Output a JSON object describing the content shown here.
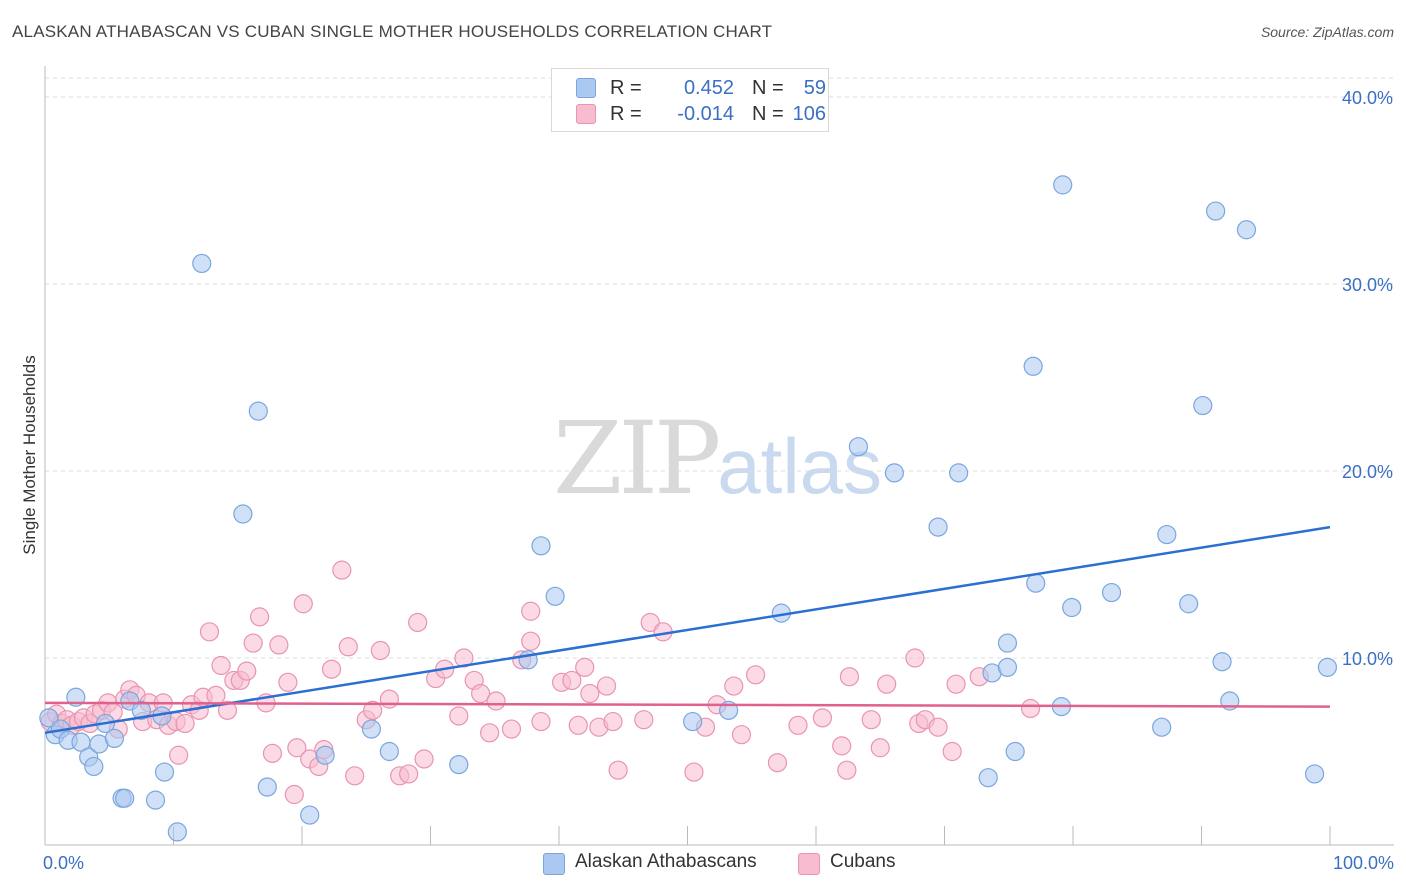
{
  "title": "ALASKAN ATHABASCAN VS CUBAN SINGLE MOTHER HOUSEHOLDS CORRELATION CHART",
  "source": "Source: ZipAtlas.com",
  "watermark": {
    "zip": "ZIP",
    "atlas": "atlas"
  },
  "legend_top": [
    {
      "r_label": "R =",
      "r_value": "0.452",
      "n_label": "N =",
      "n_value": "59",
      "color": "#aac8f0"
    },
    {
      "r_label": "R =",
      "r_value": "-0.014",
      "n_label": "N =",
      "n_value": "106",
      "color": "#f7bcd0"
    }
  ],
  "legend_bottom": [
    {
      "label": "Alaskan Athabascans",
      "color": "#aac8f0"
    },
    {
      "label": "Cubans",
      "color": "#f7bcd0"
    }
  ],
  "chart_data": {
    "type": "scatter",
    "title": "ALASKAN ATHABASCAN VS CUBAN SINGLE MOTHER HOUSEHOLDS CORRELATION CHART",
    "xlabel": "",
    "ylabel": "Single Mother Households",
    "xlim": [
      0,
      100
    ],
    "ylim": [
      0,
      40
    ],
    "x_tick_labels": [
      "0.0%",
      "100.0%"
    ],
    "y_ticks": [
      10,
      20,
      30,
      40
    ],
    "y_tick_labels": [
      "10.0%",
      "20.0%",
      "30.0%",
      "40.0%"
    ],
    "grid": true,
    "legend_placement": "top-center",
    "series": [
      {
        "name": "Alaskan Athabascans",
        "color": "#aac8f0",
        "stroke": "#7aa6de",
        "line_color": "#2a6fd1",
        "trend": {
          "x": [
            0,
            100
          ],
          "y": [
            6.0,
            17.0
          ]
        },
        "points": [
          [
            0.3,
            6.8
          ],
          [
            0.8,
            5.9
          ],
          [
            1.2,
            6.2
          ],
          [
            1.8,
            5.6
          ],
          [
            2.4,
            7.9
          ],
          [
            2.8,
            5.5
          ],
          [
            3.4,
            4.7
          ],
          [
            3.8,
            4.2
          ],
          [
            4.2,
            5.4
          ],
          [
            4.7,
            6.5
          ],
          [
            5.4,
            5.7
          ],
          [
            6.0,
            2.5
          ],
          [
            6.2,
            2.5
          ],
          [
            6.6,
            7.7
          ],
          [
            7.5,
            7.2
          ],
          [
            8.6,
            2.4
          ],
          [
            9.1,
            6.9
          ],
          [
            9.3,
            3.9
          ],
          [
            10.3,
            0.7
          ],
          [
            12.2,
            31.1
          ],
          [
            15.4,
            17.7
          ],
          [
            16.6,
            23.2
          ],
          [
            17.3,
            3.1
          ],
          [
            20.6,
            1.6
          ],
          [
            21.8,
            4.8
          ],
          [
            25.4,
            6.2
          ],
          [
            26.8,
            5.0
          ],
          [
            32.2,
            4.3
          ],
          [
            37.6,
            9.9
          ],
          [
            38.6,
            16.0
          ],
          [
            39.7,
            13.3
          ],
          [
            50.4,
            6.6
          ],
          [
            53.2,
            7.2
          ],
          [
            57.3,
            12.4
          ],
          [
            63.3,
            21.3
          ],
          [
            66.1,
            19.9
          ],
          [
            69.5,
            17.0
          ],
          [
            71.1,
            19.9
          ],
          [
            73.4,
            3.6
          ],
          [
            73.7,
            9.2
          ],
          [
            74.9,
            10.8
          ],
          [
            74.9,
            9.5
          ],
          [
            75.5,
            5.0
          ],
          [
            76.9,
            25.6
          ],
          [
            77.1,
            14.0
          ],
          [
            79.2,
            35.3
          ],
          [
            79.1,
            7.4
          ],
          [
            79.9,
            12.7
          ],
          [
            83.0,
            13.5
          ],
          [
            86.9,
            6.3
          ],
          [
            87.3,
            16.6
          ],
          [
            89.0,
            12.9
          ],
          [
            90.1,
            23.5
          ],
          [
            91.1,
            33.9
          ],
          [
            91.6,
            9.8
          ],
          [
            92.2,
            7.7
          ],
          [
            93.5,
            32.9
          ],
          [
            98.8,
            3.8
          ],
          [
            99.8,
            9.5
          ]
        ]
      },
      {
        "name": "Cubans",
        "color": "#f7bcd0",
        "stroke": "#e894b2",
        "line_color": "#e0608e",
        "trend": {
          "x": [
            0,
            100
          ],
          "y": [
            7.6,
            7.4
          ]
        },
        "points": [
          [
            0.4,
            6.6
          ],
          [
            0.9,
            7.0
          ],
          [
            1.3,
            6.5
          ],
          [
            1.7,
            6.7
          ],
          [
            2.1,
            6.4
          ],
          [
            2.6,
            6.6
          ],
          [
            3.0,
            6.8
          ],
          [
            3.5,
            6.5
          ],
          [
            3.9,
            7.0
          ],
          [
            4.4,
            7.2
          ],
          [
            4.9,
            7.6
          ],
          [
            5.3,
            7.1
          ],
          [
            5.7,
            6.2
          ],
          [
            6.2,
            7.8
          ],
          [
            6.6,
            8.3
          ],
          [
            7.1,
            8.0
          ],
          [
            7.6,
            6.6
          ],
          [
            8.1,
            7.6
          ],
          [
            8.7,
            6.7
          ],
          [
            9.2,
            7.6
          ],
          [
            9.6,
            6.4
          ],
          [
            10.2,
            6.6
          ],
          [
            10.4,
            4.8
          ],
          [
            10.9,
            6.5
          ],
          [
            11.4,
            7.5
          ],
          [
            12.0,
            7.2
          ],
          [
            12.3,
            7.9
          ],
          [
            12.8,
            11.4
          ],
          [
            13.3,
            8.0
          ],
          [
            13.7,
            9.6
          ],
          [
            14.2,
            7.2
          ],
          [
            14.7,
            8.8
          ],
          [
            15.2,
            8.8
          ],
          [
            15.7,
            9.3
          ],
          [
            16.2,
            10.8
          ],
          [
            16.7,
            12.2
          ],
          [
            17.2,
            7.6
          ],
          [
            17.7,
            4.9
          ],
          [
            18.2,
            10.7
          ],
          [
            18.9,
            8.7
          ],
          [
            19.4,
            2.7
          ],
          [
            19.6,
            5.2
          ],
          [
            20.1,
            12.9
          ],
          [
            20.6,
            4.6
          ],
          [
            21.3,
            4.2
          ],
          [
            21.7,
            5.1
          ],
          [
            22.3,
            9.4
          ],
          [
            23.1,
            14.7
          ],
          [
            23.6,
            10.6
          ],
          [
            24.1,
            3.7
          ],
          [
            25.0,
            6.7
          ],
          [
            25.5,
            7.2
          ],
          [
            26.1,
            10.4
          ],
          [
            26.8,
            7.8
          ],
          [
            27.6,
            3.7
          ],
          [
            28.3,
            3.8
          ],
          [
            29.0,
            11.9
          ],
          [
            29.5,
            4.6
          ],
          [
            30.4,
            8.9
          ],
          [
            31.1,
            9.4
          ],
          [
            32.2,
            6.9
          ],
          [
            32.6,
            10.0
          ],
          [
            33.4,
            8.8
          ],
          [
            33.9,
            8.1
          ],
          [
            34.6,
            6.0
          ],
          [
            35.1,
            7.7
          ],
          [
            36.3,
            6.2
          ],
          [
            37.1,
            9.9
          ],
          [
            37.8,
            10.9
          ],
          [
            37.8,
            12.5
          ],
          [
            38.6,
            6.6
          ],
          [
            40.2,
            8.7
          ],
          [
            41.0,
            8.8
          ],
          [
            41.5,
            6.4
          ],
          [
            42.0,
            9.5
          ],
          [
            42.4,
            8.1
          ],
          [
            43.1,
            6.3
          ],
          [
            43.7,
            8.5
          ],
          [
            44.2,
            6.6
          ],
          [
            44.6,
            4.0
          ],
          [
            46.6,
            6.7
          ],
          [
            47.1,
            11.9
          ],
          [
            48.1,
            11.4
          ],
          [
            50.5,
            3.9
          ],
          [
            51.4,
            6.3
          ],
          [
            52.3,
            7.5
          ],
          [
            53.6,
            8.5
          ],
          [
            54.2,
            5.9
          ],
          [
            55.3,
            9.1
          ],
          [
            57.0,
            4.4
          ],
          [
            58.6,
            6.4
          ],
          [
            60.5,
            6.8
          ],
          [
            62.0,
            5.3
          ],
          [
            62.4,
            4.0
          ],
          [
            62.6,
            9.0
          ],
          [
            64.3,
            6.7
          ],
          [
            65.0,
            5.2
          ],
          [
            65.5,
            8.6
          ],
          [
            67.7,
            10.0
          ],
          [
            68.0,
            6.5
          ],
          [
            68.5,
            6.7
          ],
          [
            69.5,
            6.3
          ],
          [
            70.6,
            5.0
          ],
          [
            70.9,
            8.6
          ],
          [
            72.7,
            9.0
          ],
          [
            76.7,
            7.3
          ]
        ]
      }
    ]
  }
}
